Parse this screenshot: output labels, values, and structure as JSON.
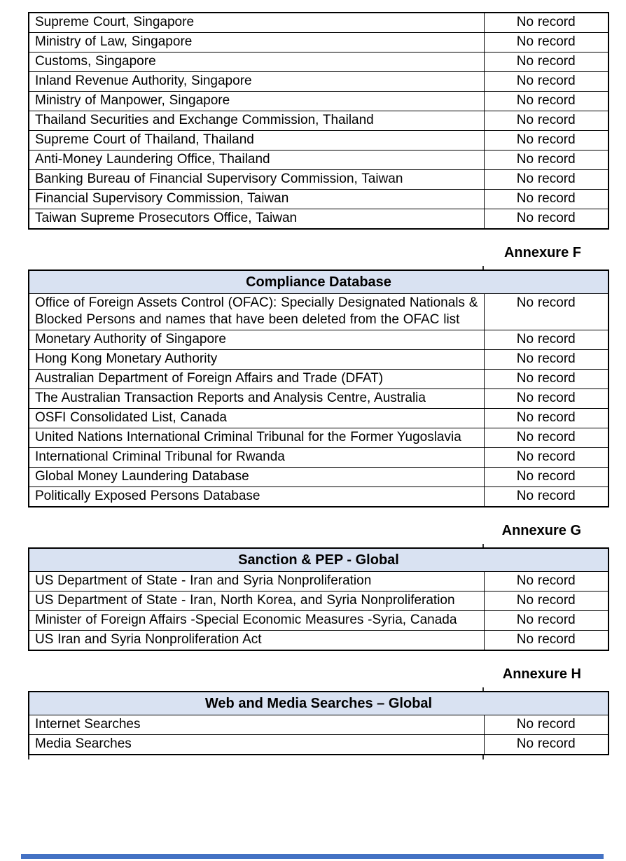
{
  "result_value": "No record",
  "colors": {
    "header_bg": "#d9e2f2",
    "table_border": "#000000",
    "text": "#000000",
    "footer_bar": "#4472c4"
  },
  "tables": [
    {
      "title": "",
      "annexure": "",
      "rows": [
        {
          "source": "Supreme Court, Singapore",
          "result": "No record"
        },
        {
          "source": "Ministry of Law, Singapore",
          "result": "No record"
        },
        {
          "source": "Customs, Singapore",
          "result": "No record"
        },
        {
          "source": "Inland Revenue Authority, Singapore",
          "result": "No record"
        },
        {
          "source": "Ministry of Manpower, Singapore",
          "result": "No record"
        },
        {
          "source": "Thailand Securities and Exchange Commission, Thailand",
          "result": "No record"
        },
        {
          "source": "Supreme Court of Thailand, Thailand",
          "result": "No record"
        },
        {
          "source": "Anti-Money Laundering Office, Thailand",
          "result": "No record"
        },
        {
          "source": "Banking Bureau of Financial Supervisory Commission, Taiwan",
          "result": "No record"
        },
        {
          "source": "Financial Supervisory Commission, Taiwan",
          "result": "No record"
        },
        {
          "source": "Taiwan Supreme Prosecutors Office, Taiwan",
          "result": "No record"
        }
      ]
    },
    {
      "title": "Compliance Database",
      "annexure": "Annexure F",
      "rows": [
        {
          "source": "Office of Foreign Assets Control (OFAC): Specially Designated Nationals & Blocked Persons and names that have been deleted from the OFAC list",
          "result": "No record"
        },
        {
          "source": "Monetary Authority of Singapore",
          "result": "No record"
        },
        {
          "source": "Hong Kong Monetary Authority",
          "result": "No record"
        },
        {
          "source": "Australian Department of Foreign Affairs and Trade (DFAT)",
          "result": "No record"
        },
        {
          "source": "The Australian Transaction Reports and Analysis Centre, Australia",
          "result": "No record"
        },
        {
          "source": "OSFI Consolidated List, Canada",
          "result": "No record"
        },
        {
          "source": "United Nations International Criminal Tribunal for the Former Yugoslavia",
          "result": "No record"
        },
        {
          "source": "International Criminal Tribunal for Rwanda",
          "result": "No record"
        },
        {
          "source": "Global Money Laundering Database",
          "result": "No record"
        },
        {
          "source": "Politically Exposed Persons Database",
          "result": "No record"
        }
      ]
    },
    {
      "title": "Sanction & PEP - Global",
      "annexure": "Annexure G",
      "rows": [
        {
          "source": "US Department of State - Iran and Syria Nonproliferation",
          "result": "No record"
        },
        {
          "source": "US Department of State - Iran, North Korea, and Syria Nonproliferation",
          "result": "No record"
        },
        {
          "source": "Minister of Foreign Affairs -Special Economic Measures -Syria, Canada",
          "result": "No record"
        },
        {
          "source": "US Iran and Syria Nonproliferation Act",
          "result": "No record"
        }
      ]
    },
    {
      "title": "Web and Media Searches – Global",
      "annexure": "Annexure H",
      "rows": [
        {
          "source": "Internet Searches",
          "result": "No record"
        },
        {
          "source": "Media Searches",
          "result": "No record"
        }
      ]
    }
  ]
}
